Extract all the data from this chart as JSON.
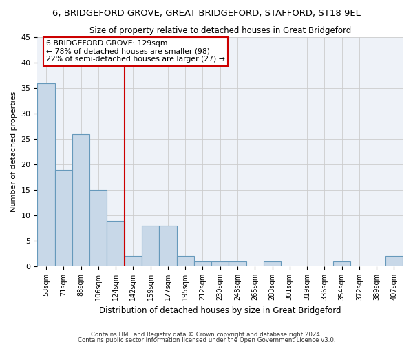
{
  "title": "6, BRIDGEFORD GROVE, GREAT BRIDGEFORD, STAFFORD, ST18 9EL",
  "subtitle": "Size of property relative to detached houses in Great Bridgeford",
  "xlabel": "Distribution of detached houses by size in Great Bridgeford",
  "ylabel": "Number of detached properties",
  "categories": [
    "53sqm",
    "71sqm",
    "88sqm",
    "106sqm",
    "124sqm",
    "142sqm",
    "159sqm",
    "177sqm",
    "195sqm",
    "212sqm",
    "230sqm",
    "248sqm",
    "265sqm",
    "283sqm",
    "301sqm",
    "319sqm",
    "336sqm",
    "354sqm",
    "372sqm",
    "389sqm",
    "407sqm"
  ],
  "values": [
    36,
    19,
    26,
    15,
    9,
    2,
    8,
    8,
    2,
    1,
    1,
    1,
    0,
    1,
    0,
    0,
    0,
    1,
    0,
    0,
    2
  ],
  "bar_color": "#c8d8e8",
  "bar_edge_color": "#6699bb",
  "vline_x_idx": 4,
  "vline_color": "#cc0000",
  "annotation_text": "6 BRIDGEFORD GROVE: 129sqm\n← 78% of detached houses are smaller (98)\n22% of semi-detached houses are larger (27) →",
  "annotation_box_color": "#ffffff",
  "annotation_box_edge": "#cc0000",
  "ylim": [
    0,
    45
  ],
  "yticks": [
    0,
    5,
    10,
    15,
    20,
    25,
    30,
    35,
    40,
    45
  ],
  "bg_color": "#eef2f8",
  "footer1": "Contains HM Land Registry data © Crown copyright and database right 2024.",
  "footer2": "Contains public sector information licensed under the Open Government Licence v3.0."
}
